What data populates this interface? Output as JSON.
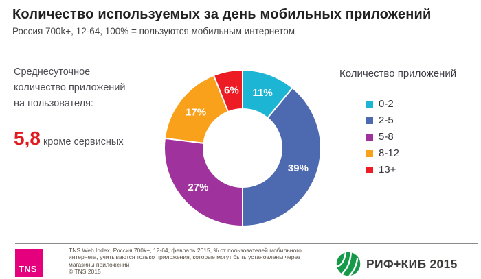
{
  "header": {
    "title": "Количество используемых за день мобильных приложений",
    "subtitle": "Россия 700k+, 12-64, 100% = пользуются мобильным интернетом"
  },
  "left_panel": {
    "description": "Среднесуточное количество приложений на пользователя:",
    "stat_value": "5,8",
    "stat_suffix": "кроме сервисных"
  },
  "legend": {
    "title": "Количество приложений"
  },
  "chart_data": {
    "type": "pie",
    "subtype": "donut",
    "title": "Количество используемых за день мобильных приложений",
    "categories": [
      "0-2",
      "2-5",
      "5-8",
      "8-12",
      "13+"
    ],
    "values": [
      11,
      39,
      27,
      17,
      6
    ],
    "labels": [
      "11%",
      "39%",
      "27%",
      "17%",
      "6%"
    ],
    "colors": [
      "#1cb6d4",
      "#4d6ab1",
      "#9f329c",
      "#f9a11a",
      "#ed1c24"
    ],
    "legend_title": "Количество приложений",
    "legend_position": "right",
    "start_angle_deg": 0,
    "direction": "clockwise",
    "inner_radius_ratio": 0.5
  },
  "footer": {
    "tns_logo": "TNS",
    "note_lines": [
      "TNS Web Index, Россия 700k+, 12-64, февраль 2015, % от пользователей мобильного",
      "интернета, учитываются только приложения, которые могут быть установлены через",
      "магазины приложений",
      "© TNS 2015"
    ],
    "rif_logo_text": "РИФ+КИБ 2015"
  },
  "colors": {
    "accent_red": "#e01b1f",
    "tns_magenta": "#e5007d",
    "rif_green": "#149a49"
  }
}
